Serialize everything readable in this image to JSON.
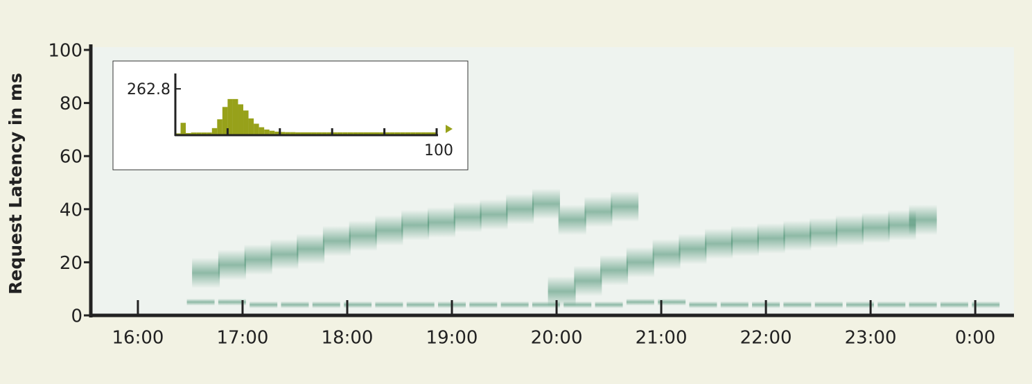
{
  "chart_data": {
    "type": "heatmap",
    "y_label": "Request Latency in ms",
    "xlim": [
      15.55,
      24.37
    ],
    "xticks": [
      {
        "value": 16,
        "label": "16:00"
      },
      {
        "value": 17,
        "label": "17:00"
      },
      {
        "value": 18,
        "label": "18:00"
      },
      {
        "value": 19,
        "label": "19:00"
      },
      {
        "value": 20,
        "label": "20:00"
      },
      {
        "value": 21,
        "label": "21:00"
      },
      {
        "value": 22,
        "label": "22:00"
      },
      {
        "value": 23,
        "label": "23:00"
      },
      {
        "value": 24,
        "label": "0:00"
      }
    ],
    "ylim": [
      0,
      100
    ],
    "yticks": [
      0,
      20,
      40,
      60,
      80,
      100
    ],
    "color": "#3f8a6a",
    "series": [
      {
        "x": [
          16.65,
          16.9,
          17.15,
          17.4,
          17.65,
          17.9,
          18.15,
          18.4,
          18.65,
          18.9,
          19.15,
          19.4,
          19.65,
          19.9,
          20.15,
          20.4,
          20.65
        ],
        "values": [
          16,
          19,
          21,
          23,
          25,
          28,
          30,
          32,
          34,
          35,
          37,
          38,
          40,
          42,
          36,
          39,
          41
        ]
      },
      {
        "x": [
          20.05,
          20.3,
          20.55,
          20.8,
          21.05,
          21.3,
          21.55,
          21.8,
          22.05,
          22.3,
          22.55,
          22.8,
          23.05,
          23.3,
          23.5
        ],
        "values": [
          9,
          13,
          17,
          20,
          23,
          25,
          27,
          28,
          29,
          30,
          31,
          32,
          33,
          34,
          36
        ]
      },
      {
        "x": [
          16.6,
          16.9,
          17.2,
          17.5,
          17.8,
          18.1,
          18.4,
          18.7,
          19.0,
          19.3,
          19.6,
          19.9,
          20.2,
          20.5,
          20.8,
          21.1,
          21.4,
          21.7,
          22.0,
          22.3,
          22.6,
          22.9,
          23.2,
          23.5,
          23.8,
          24.1
        ],
        "values": [
          5,
          5,
          4,
          4,
          4,
          4,
          4,
          4,
          4,
          4,
          4,
          4,
          4,
          4,
          5,
          5,
          4,
          4,
          4,
          4,
          4,
          4,
          4,
          4,
          4,
          4
        ]
      }
    ],
    "inset": {
      "type": "histogram",
      "color": "#97a11a",
      "bins": [
        0,
        2,
        4,
        6,
        8,
        10,
        12,
        14,
        16,
        18,
        20,
        22,
        24,
        26,
        28,
        30,
        32,
        34,
        36,
        38,
        40,
        42,
        44,
        46,
        48,
        50,
        52,
        54,
        56,
        58,
        60,
        62,
        64,
        66,
        68,
        70,
        72,
        74,
        76,
        78,
        80,
        82,
        84,
        86,
        88,
        90,
        92,
        94,
        96,
        98,
        100
      ],
      "values": [
        10,
        70,
        12,
        15,
        15,
        15,
        15,
        40,
        90,
        160,
        205,
        205,
        175,
        140,
        95,
        65,
        45,
        32,
        25,
        20,
        18,
        17,
        17,
        16,
        16,
        16,
        16,
        16,
        16,
        16,
        16,
        16,
        16,
        16,
        16,
        16,
        16,
        16,
        16,
        16,
        16,
        16,
        16,
        16,
        16,
        16,
        16,
        16,
        16,
        16
      ],
      "ylim": [
        0,
        350
      ],
      "yticks": [
        262.8
      ],
      "xlim": [
        0,
        100
      ],
      "xticks": [
        100
      ],
      "xtick_marks": [
        20,
        40,
        60,
        80
      ]
    }
  }
}
